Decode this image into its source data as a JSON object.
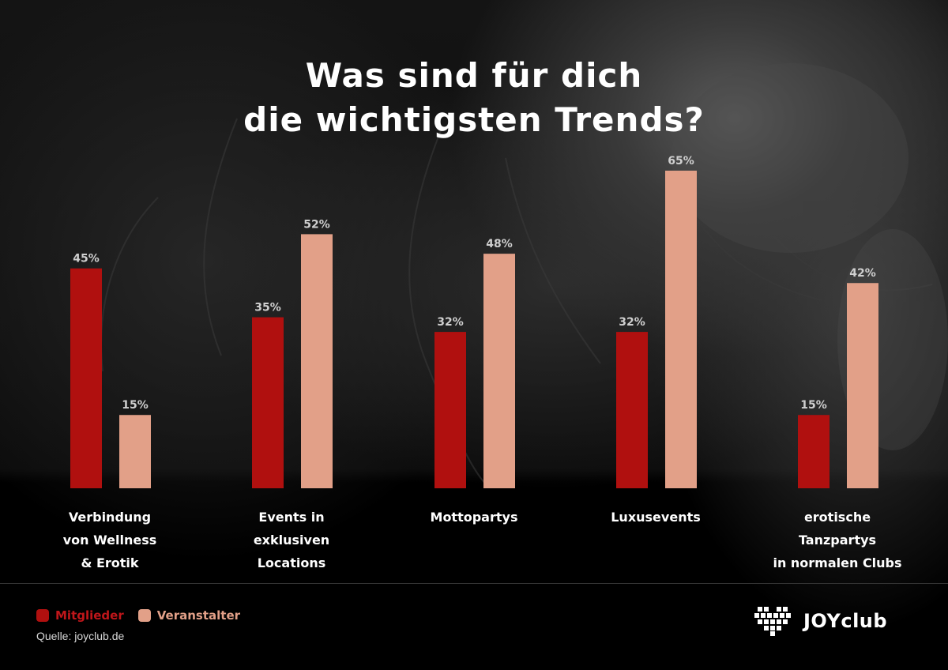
{
  "title": "Was sind für dich\ndie wichtigsten Trends?",
  "chart_data": {
    "type": "bar",
    "title": "Was sind für dich die wichtigsten Trends?",
    "categories": [
      "Verbindung\nvon Wellness\n& Erotik",
      "Events in\nexklusiven\nLocations",
      "Mottopartys",
      "Luxusevents",
      "erotische\nTanzpartys\nin normalen Clubs"
    ],
    "series": [
      {
        "name": "Mitglieder",
        "values": [
          45,
          35,
          32,
          32,
          15
        ],
        "labels": [
          "45%",
          "35%",
          "32%",
          "32%",
          "15%"
        ],
        "color": "#b0100f"
      },
      {
        "name": "Veranstalter",
        "values": [
          15,
          52,
          48,
          65,
          42
        ],
        "labels": [
          "15%",
          "52%",
          "48%",
          "65%",
          "42%"
        ],
        "color": "#e2a088"
      }
    ],
    "ylim": [
      0,
      65
    ],
    "xlabel": "",
    "ylabel": "",
    "grid": false,
    "legend": "bottom-left"
  },
  "legend": {
    "members_label": "Mitglieder",
    "organizers_label": "Veranstalter"
  },
  "source": "Quelle: joyclub.de",
  "logo": {
    "text": "JOYclub",
    "icon": "heart-pixel-icon"
  },
  "colors": {
    "members": "#b0100f",
    "organizers": "#e2a088",
    "background": "#000000"
  }
}
